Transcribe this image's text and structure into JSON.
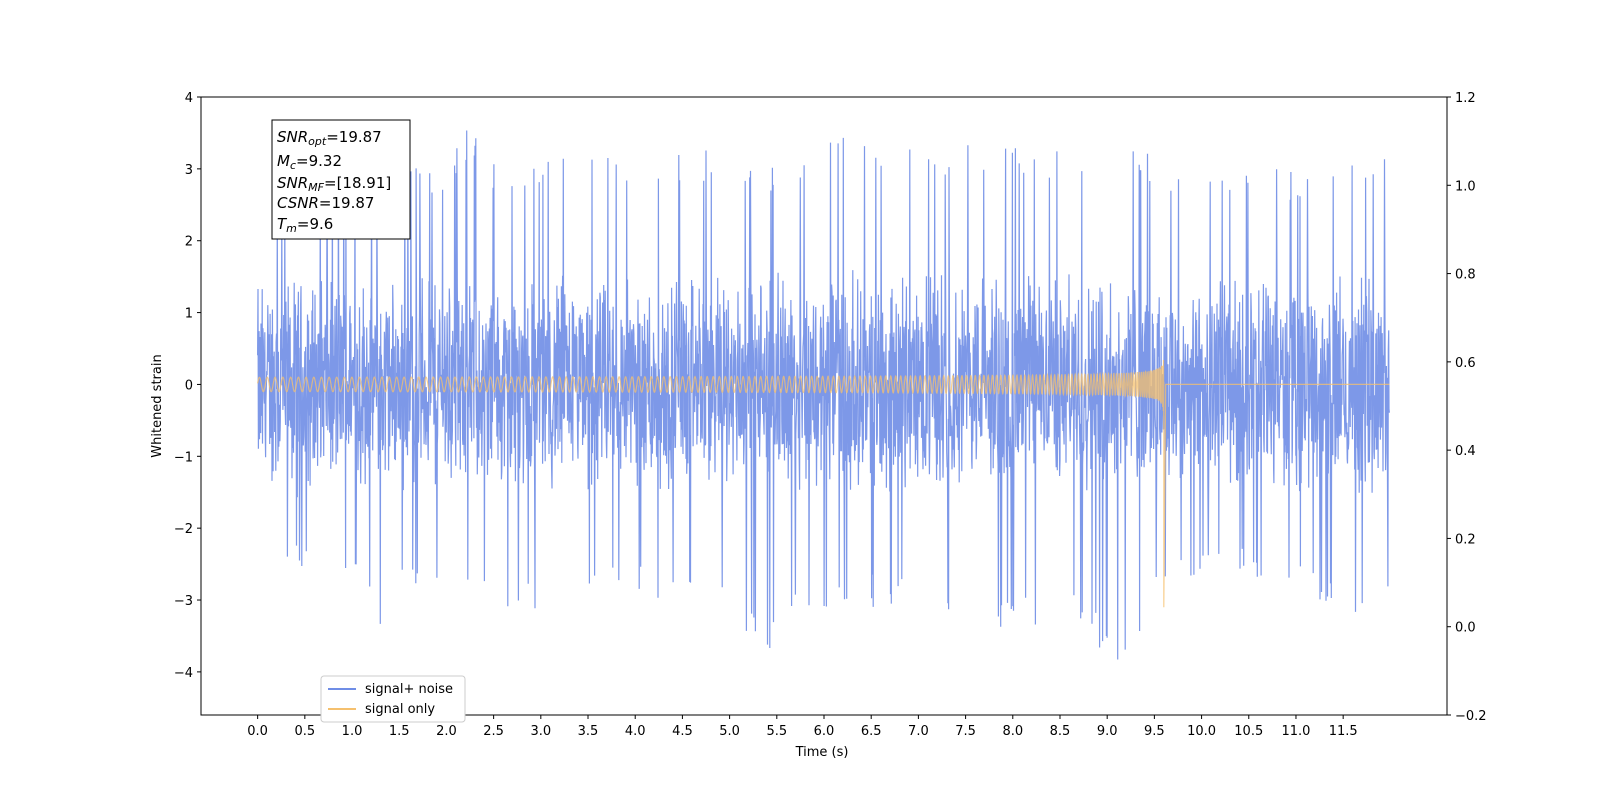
{
  "chart_data": {
    "type": "line",
    "xlabel": "Time (s)",
    "ylabel": "Whitened strain",
    "xlim": [
      -0.6,
      12.6
    ],
    "ylim": [
      -4.6,
      4.0
    ],
    "right_ylim": [
      -0.2,
      1.2
    ],
    "x_ticks": [
      "0.0",
      "0.5",
      "1.0",
      "1.5",
      "2.0",
      "2.5",
      "3.0",
      "3.5",
      "4.0",
      "4.5",
      "5.0",
      "5.5",
      "6.0",
      "6.5",
      "7.0",
      "7.5",
      "8.0",
      "8.5",
      "9.0",
      "9.5",
      "10.0",
      "10.5",
      "11.0",
      "11.5"
    ],
    "y_ticks": [
      "4",
      "3",
      "2",
      "1",
      "0",
      "−1",
      "−2",
      "−3",
      "−4"
    ],
    "right_y_ticks": [
      "1.2",
      "1.0",
      "0.8",
      "0.6",
      "0.4",
      "0.2",
      "0.0",
      "−0.2"
    ],
    "legend_position": "lower-left",
    "series": [
      {
        "name": "signal+ noise",
        "color": "#6f8de6",
        "envelope": {
          "t": [
            0.0,
            0.5,
            1.0,
            1.35,
            1.5,
            2.0,
            2.2,
            2.5,
            3.0,
            3.5,
            4.0,
            4.5,
            5.0,
            5.43,
            5.5,
            6.0,
            6.27,
            6.5,
            7.0,
            7.5,
            8.0,
            8.5,
            9.0,
            9.15,
            9.5,
            9.6,
            10.0,
            10.5,
            11.0,
            11.5,
            11.99
          ],
          "max": [
            2.7,
            2.8,
            3.2,
            2.9,
            3.0,
            3.1,
            3.6,
            3.2,
            3.1,
            3.3,
            3.2,
            3.3,
            3.3,
            3.0,
            3.2,
            3.4,
            3.6,
            3.4,
            3.3,
            3.4,
            3.3,
            3.4,
            3.5,
            3.3,
            3.2,
            3.0,
            2.9,
            3.1,
            3.0,
            3.2,
            3.3
          ],
          "min": [
            -2.4,
            -2.6,
            -2.8,
            -3.7,
            -3.0,
            -3.0,
            -2.9,
            -3.3,
            -3.2,
            -3.0,
            -2.9,
            -3.1,
            -3.0,
            -4.2,
            -3.0,
            -3.4,
            -3.0,
            -3.1,
            -3.0,
            -3.2,
            -3.5,
            -3.2,
            -3.8,
            -4.0,
            -3.2,
            -2.9,
            -2.6,
            -2.7,
            -2.8,
            -3.2,
            -3.2
          ]
        }
      },
      {
        "name": "signal only",
        "color": "#f5c06e",
        "chirp": {
          "start": 0.0,
          "merger": 9.6,
          "end": 11.99,
          "amp_start": 0.05,
          "amp_peak": 3.1,
          "f_start": 12,
          "f_peak": 250
        }
      }
    ]
  },
  "annotation": {
    "snr_opt": {
      "sym": "SNR",
      "sub": "opt",
      "val": "=19.87"
    },
    "mc": {
      "sym": "M",
      "sub": "c",
      "val": "=9.32"
    },
    "snr_mf": {
      "sym": "SNR",
      "sub": "MF",
      "val": "=[18.91]"
    },
    "csnr": {
      "sym": "CSNR",
      "sub": "",
      "val": "=19.87"
    },
    "tm": {
      "sym": "T",
      "sub": "m",
      "val": "=9.6"
    }
  }
}
